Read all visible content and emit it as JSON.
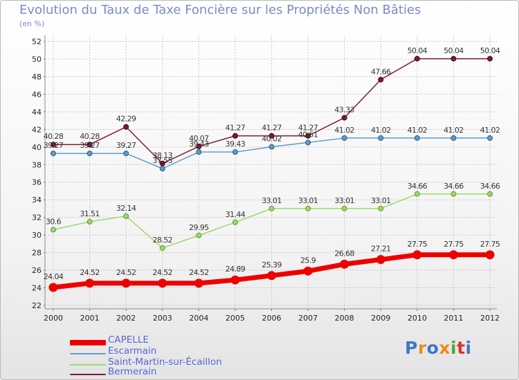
{
  "title": "Evolution du Taux de Taxe Foncière sur les Propriétés Non Bâties",
  "subtitle": "(en %)",
  "colors": {
    "CAPELLE": "#ee0000",
    "Escarmain": "#5e9bc8",
    "Saint-Martin-sur-Écaillon": "#9dd86a",
    "Bermerain": "#7b1c28",
    "grid": "#c9c9c9",
    "axis_text": "#222222"
  },
  "chart_data": {
    "type": "line",
    "title": "Evolution du Taux de Taxe Foncière sur les Propriétés Non Bâties",
    "ylabel": "(en %)",
    "xlabel": "",
    "x": [
      "2000",
      "2001",
      "2002",
      "2003",
      "2004",
      "2005",
      "2006",
      "2007",
      "2008",
      "2009",
      "2010",
      "2011",
      "2012"
    ],
    "ylim": [
      22,
      52
    ],
    "yticks": [
      22,
      24,
      26,
      28,
      30,
      32,
      34,
      36,
      38,
      40,
      42,
      44,
      46,
      48,
      50,
      52
    ],
    "grid": true,
    "legend_position": "bottom-left",
    "series": [
      {
        "name": "CAPELLE",
        "values": [
          24.04,
          24.52,
          24.52,
          24.52,
          24.52,
          24.89,
          25.39,
          25.9,
          26.68,
          27.21,
          27.75,
          27.75,
          27.75
        ],
        "labels": [
          "24.04",
          "24.52",
          "24.52",
          "24.52",
          "24.52",
          "24.89",
          "25.39",
          "25.9",
          "26.68",
          "27.21",
          "27.75",
          "27.75",
          "27.75"
        ]
      },
      {
        "name": "Escarmain",
        "values": [
          39.27,
          39.27,
          39.27,
          37.55,
          39.43,
          39.43,
          40.02,
          40.51,
          41.02,
          41.02,
          41.02,
          41.02,
          41.02
        ],
        "labels": [
          "39.27",
          "39.27",
          "39.27",
          "37.55",
          "39.43",
          "39.43",
          "40.02",
          "40.51",
          "41.02",
          "41.02",
          "41.02",
          "41.02",
          "41.02"
        ]
      },
      {
        "name": "Saint-Martin-sur-Écaillon",
        "values": [
          30.6,
          31.51,
          32.14,
          28.52,
          29.95,
          31.44,
          33.01,
          33.01,
          33.01,
          33.01,
          34.66,
          34.66,
          34.66
        ],
        "labels": [
          "30.6",
          "31.51",
          "32.14",
          "28.52",
          "29.95",
          "31.44",
          "33.01",
          "33.01",
          "33.01",
          "33.01",
          "34.66",
          "34.66",
          "34.66"
        ]
      },
      {
        "name": "Bermerain",
        "values": [
          40.28,
          40.28,
          42.29,
          38.13,
          40.07,
          41.27,
          41.27,
          41.27,
          43.33,
          47.66,
          50.04,
          50.04,
          50.04
        ],
        "labels": [
          "40.28",
          "40.28",
          "42.29",
          "38.13",
          "40.07",
          "41.27",
          "41.27",
          "41.27",
          "43.33",
          "47.66",
          "50.04",
          "50.04",
          "50.04"
        ]
      }
    ]
  },
  "logo": {
    "text": "Proxiti"
  }
}
